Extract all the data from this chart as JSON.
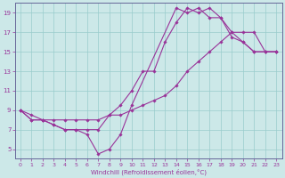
{
  "xlabel": "Windchill (Refroidissement éolien,°C)",
  "bg_color": "#cce8e8",
  "grid_color": "#99cccc",
  "line_color": "#993399",
  "spine_color": "#666699",
  "xlim": [
    -0.5,
    23.5
  ],
  "ylim": [
    4,
    20
  ],
  "xticks": [
    0,
    1,
    2,
    3,
    4,
    5,
    6,
    7,
    8,
    9,
    10,
    11,
    12,
    13,
    14,
    15,
    16,
    17,
    18,
    19,
    20,
    21,
    22,
    23
  ],
  "yticks": [
    5,
    7,
    9,
    11,
    13,
    15,
    17,
    19
  ],
  "series": [
    {
      "x": [
        0,
        1,
        2,
        3,
        4,
        5,
        6,
        7,
        8,
        9,
        10,
        11,
        12,
        13,
        14,
        15,
        16,
        17,
        18,
        19,
        20,
        21,
        22,
        23
      ],
      "y": [
        9,
        8,
        8,
        7.5,
        7,
        7,
        7,
        7,
        8.5,
        9.5,
        11,
        13,
        13,
        16,
        18,
        19.5,
        19,
        19.5,
        18.5,
        16.5,
        16,
        15,
        15,
        15
      ]
    },
    {
      "x": [
        0,
        1,
        2,
        3,
        4,
        5,
        6,
        7,
        8,
        9,
        10,
        11,
        12,
        13,
        14,
        15,
        16,
        17,
        18,
        19,
        20,
        21,
        22,
        23
      ],
      "y": [
        9,
        8.5,
        8,
        8,
        8,
        8,
        8,
        8,
        8.5,
        8.5,
        9,
        9.5,
        10,
        10.5,
        11.5,
        13,
        14,
        15,
        16,
        17,
        17,
        17,
        15,
        15
      ]
    },
    {
      "x": [
        0,
        1,
        2,
        3,
        4,
        5,
        6,
        7,
        8,
        9,
        10,
        14,
        15,
        16,
        17,
        18,
        19,
        20,
        21,
        22,
        23
      ],
      "y": [
        9,
        8,
        8,
        7.5,
        7,
        7,
        6.5,
        4.5,
        5,
        6.5,
        9.5,
        19.5,
        19,
        19.5,
        18.5,
        18.5,
        17,
        16,
        15,
        15,
        15
      ]
    }
  ]
}
